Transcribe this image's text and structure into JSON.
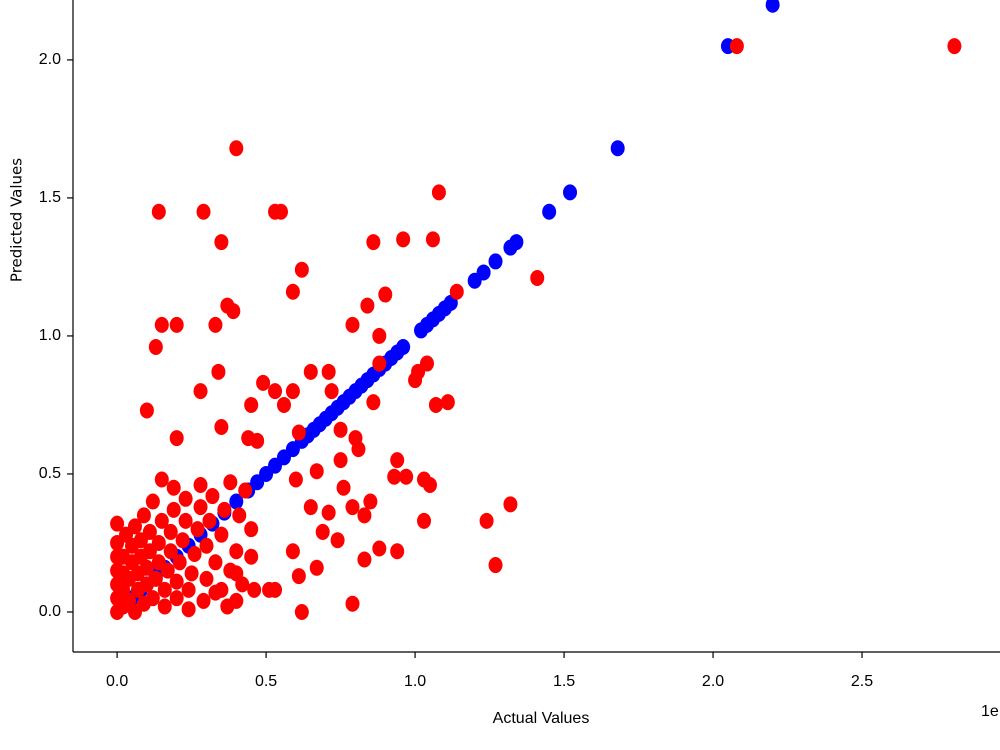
{
  "chart_data": {
    "type": "scatter",
    "xlabel": "Actual Values",
    "ylabel": "Predicted Values",
    "offset_text": "1e",
    "xlim": [
      -0.148,
      2.963
    ],
    "ylim": [
      -0.145,
      2.217
    ],
    "xticks": [
      {
        "value": 0,
        "label": "0.0"
      },
      {
        "value": 0.5,
        "label": "0.5"
      },
      {
        "value": 1,
        "label": "1.0"
      },
      {
        "value": 1.5,
        "label": "1.5"
      },
      {
        "value": 2,
        "label": "2.0"
      },
      {
        "value": 2.5,
        "label": "2.5"
      }
    ],
    "yticks": [
      {
        "value": 0,
        "label": "0.0"
      },
      {
        "value": 0.5,
        "label": "0.5"
      },
      {
        "value": 1,
        "label": "1.0"
      },
      {
        "value": 1.5,
        "label": "1.5"
      },
      {
        "value": 2,
        "label": "2.0"
      }
    ],
    "grid": false,
    "series": [
      {
        "color": "#0000ff",
        "x": [
          0.02,
          0.05,
          0.08,
          0.1,
          0.13,
          0.16,
          0.2,
          0.24,
          0.28,
          0.32,
          0.36,
          0.4,
          0.44,
          0.47,
          0.5,
          0.53,
          0.56,
          0.59,
          0.62,
          0.64,
          0.66,
          0.68,
          0.7,
          0.72,
          0.74,
          0.76,
          0.78,
          0.8,
          0.82,
          0.84,
          0.86,
          0.88,
          0.9,
          0.92,
          0.94,
          0.96,
          1.02,
          1.04,
          1.06,
          1.08,
          1.1,
          1.12,
          1.2,
          1.23,
          1.27,
          1.32,
          1.34,
          1.45,
          1.52,
          1.68,
          2.05,
          2.2
        ],
        "values": [
          0.02,
          0.05,
          0.08,
          0.1,
          0.13,
          0.16,
          0.2,
          0.24,
          0.28,
          0.32,
          0.36,
          0.4,
          0.44,
          0.47,
          0.5,
          0.53,
          0.56,
          0.59,
          0.62,
          0.64,
          0.66,
          0.68,
          0.7,
          0.72,
          0.74,
          0.76,
          0.78,
          0.8,
          0.82,
          0.84,
          0.86,
          0.88,
          0.9,
          0.92,
          0.94,
          0.96,
          1.02,
          1.04,
          1.06,
          1.08,
          1.1,
          1.12,
          1.2,
          1.23,
          1.27,
          1.32,
          1.34,
          1.45,
          1.52,
          1.68,
          2.05,
          2.2
        ]
      },
      {
        "color": "#ff0000",
        "x": [
          2.81,
          2.08,
          0.4,
          0.14,
          0.29,
          0.53,
          0.55,
          1.08,
          0.35,
          0.86,
          0.96,
          1.06,
          0.62,
          1.41,
          0.59,
          0.9,
          0.84,
          1.14,
          0.37,
          0.39,
          0.15,
          0.2,
          0.33,
          0.79,
          0.13,
          0.34,
          0.28,
          0.1,
          0.88,
          1.01,
          1.04,
          1.0,
          0.65,
          0.71,
          0.49,
          0.53,
          0.59,
          0.45,
          0.56,
          0.72,
          0.86,
          1.07,
          1.11,
          0.2,
          0.35,
          0.75,
          0.8,
          0.81,
          0.44,
          0.47,
          0.61,
          0.94,
          0.93,
          0.97,
          1.03,
          1.05,
          0.67,
          0.75,
          0.6,
          0.65,
          0.71,
          0.76,
          0.79,
          0.85,
          0.83,
          1.32,
          1.24,
          1.03,
          0.69,
          0.74,
          0.88,
          0.94,
          0.83,
          1.27,
          0.67,
          0.61,
          0.59,
          0.53,
          0.51,
          0.79,
          0.62,
          0.4,
          0.46,
          0.4,
          0.35,
          0.88,
          0.0,
          0.0,
          0.0,
          0.0,
          0.0,
          0.0,
          0.0,
          0.02,
          0.02,
          0.02,
          0.02,
          0.03,
          0.04,
          0.04,
          0.05,
          0.05,
          0.06,
          0.06,
          0.07,
          0.07,
          0.08,
          0.08,
          0.09,
          0.09,
          0.1,
          0.1,
          0.11,
          0.11,
          0.12,
          0.12,
          0.13,
          0.14,
          0.14,
          0.15,
          0.15,
          0.16,
          0.16,
          0.17,
          0.18,
          0.18,
          0.19,
          0.19,
          0.2,
          0.2,
          0.21,
          0.22,
          0.23,
          0.23,
          0.24,
          0.24,
          0.25,
          0.26,
          0.27,
          0.28,
          0.28,
          0.29,
          0.3,
          0.3,
          0.31,
          0.32,
          0.33,
          0.33,
          0.35,
          0.36,
          0.37,
          0.38,
          0.38,
          0.4,
          0.41,
          0.42,
          0.43,
          0.45,
          0.45
        ],
        "values": [
          2.05,
          2.05,
          1.68,
          1.45,
          1.45,
          1.45,
          1.45,
          1.52,
          1.34,
          1.34,
          1.35,
          1.35,
          1.24,
          1.21,
          1.16,
          1.15,
          1.11,
          1.16,
          1.11,
          1.09,
          1.04,
          1.04,
          1.04,
          1.04,
          0.96,
          0.87,
          0.8,
          0.73,
          0.9,
          0.87,
          0.9,
          0.84,
          0.87,
          0.87,
          0.83,
          0.8,
          0.8,
          0.75,
          0.75,
          0.8,
          0.76,
          0.75,
          0.76,
          0.63,
          0.67,
          0.66,
          0.63,
          0.59,
          0.63,
          0.62,
          0.65,
          0.55,
          0.49,
          0.49,
          0.48,
          0.46,
          0.51,
          0.55,
          0.48,
          0.38,
          0.36,
          0.45,
          0.38,
          0.4,
          0.35,
          0.39,
          0.33,
          0.33,
          0.29,
          0.26,
          0.23,
          0.22,
          0.19,
          0.17,
          0.16,
          0.13,
          0.22,
          0.08,
          0.08,
          0.03,
          0.0,
          0.04,
          0.08,
          0.14,
          0.08,
          1.0,
          0.0,
          0.05,
          0.1,
          0.15,
          0.2,
          0.25,
          0.32,
          0.02,
          0.08,
          0.14,
          0.2,
          0.28,
          0.04,
          0.12,
          0.18,
          0.24,
          0.0,
          0.31,
          0.08,
          0.14,
          0.2,
          0.26,
          0.03,
          0.35,
          0.1,
          0.16,
          0.22,
          0.29,
          0.05,
          0.4,
          0.12,
          0.18,
          0.25,
          0.33,
          0.48,
          0.02,
          0.08,
          0.15,
          0.22,
          0.29,
          0.37,
          0.45,
          0.05,
          0.11,
          0.18,
          0.26,
          0.33,
          0.41,
          0.01,
          0.08,
          0.14,
          0.21,
          0.3,
          0.38,
          0.46,
          0.04,
          0.12,
          0.24,
          0.33,
          0.42,
          0.07,
          0.18,
          0.28,
          0.37,
          0.02,
          0.15,
          0.47,
          0.22,
          0.35,
          0.1,
          0.44,
          0.3,
          0.2
        ]
      }
    ]
  }
}
